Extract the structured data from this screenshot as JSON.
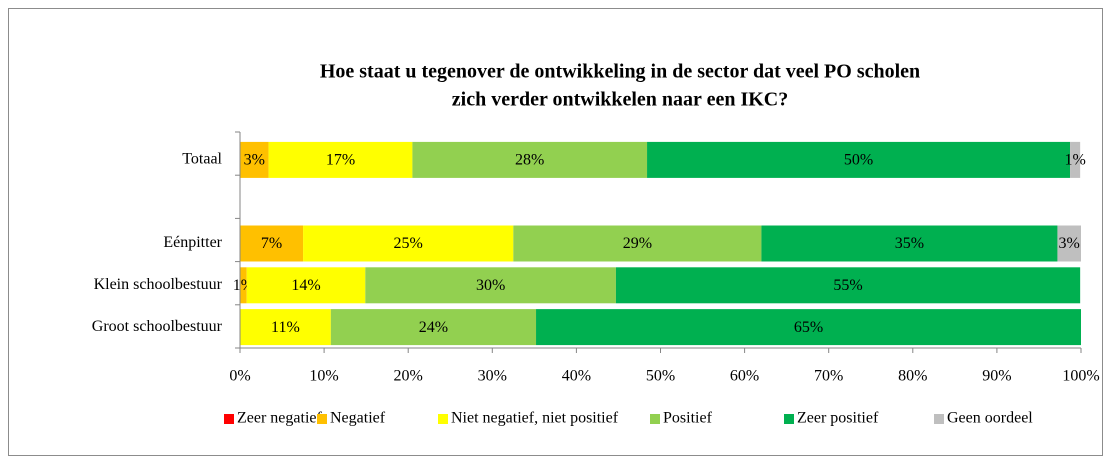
{
  "chart_data": {
    "type": "stacked_bar_horizontal",
    "title": [
      "Hoe staat u tegenover de ontwikkeling in de sector dat veel PO scholen",
      "zich verder ontwikkelen naar een IKC?"
    ],
    "categories": [
      "Totaal",
      null,
      "Eénpitter",
      "Klein schoolbestuur",
      "Groot schoolbestuur"
    ],
    "series": [
      {
        "name": "Zeer negatief",
        "color": "#ff0000",
        "values": [
          null,
          null,
          null,
          null,
          null
        ],
        "value_labels": [
          null,
          null,
          null,
          null,
          null
        ]
      },
      {
        "name": "Negatief",
        "color": "#ffc000",
        "values": [
          3.4,
          null,
          7.5,
          0.8,
          null
        ],
        "value_labels": [
          "3%",
          null,
          "7%",
          "1%",
          null
        ]
      },
      {
        "name": "Niet negatief, niet positief",
        "color": "#ffff00",
        "values": [
          17.1,
          null,
          25,
          14.1,
          10.8
        ],
        "value_labels": [
          "17%",
          null,
          "25%",
          "14%",
          "11%"
        ]
      },
      {
        "name": "Positief",
        "color": "#92d050",
        "values": [
          27.9,
          null,
          29.5,
          29.8,
          24.4
        ],
        "value_labels": [
          "28%",
          null,
          "29%",
          "30%",
          "24%"
        ]
      },
      {
        "name": "Zeer positief",
        "color": "#00b050",
        "values": [
          50.3,
          null,
          35.2,
          55.2,
          64.8
        ],
        "value_labels": [
          "50%",
          null,
          "35%",
          "55%",
          "65%"
        ]
      },
      {
        "name": "Geen oordeel",
        "color": "#bfbfbf",
        "values": [
          1.2,
          null,
          2.8,
          null,
          null
        ],
        "value_labels": [
          "1%",
          null,
          "3%",
          null,
          null
        ]
      }
    ],
    "xlim": [
      0,
      100
    ],
    "xticks": [
      {
        "value": 0,
        "label": "0%"
      },
      {
        "value": 10,
        "label": "10%"
      },
      {
        "value": 20,
        "label": "20%"
      },
      {
        "value": 30,
        "label": "30%"
      },
      {
        "value": 40,
        "label": "40%"
      },
      {
        "value": 50,
        "label": "50%"
      },
      {
        "value": 60,
        "label": "60%"
      },
      {
        "value": 70,
        "label": "70%"
      },
      {
        "value": 80,
        "label": "80%"
      },
      {
        "value": 90,
        "label": "90%"
      },
      {
        "value": 100,
        "label": "100%"
      }
    ],
    "legend": "bottom"
  }
}
